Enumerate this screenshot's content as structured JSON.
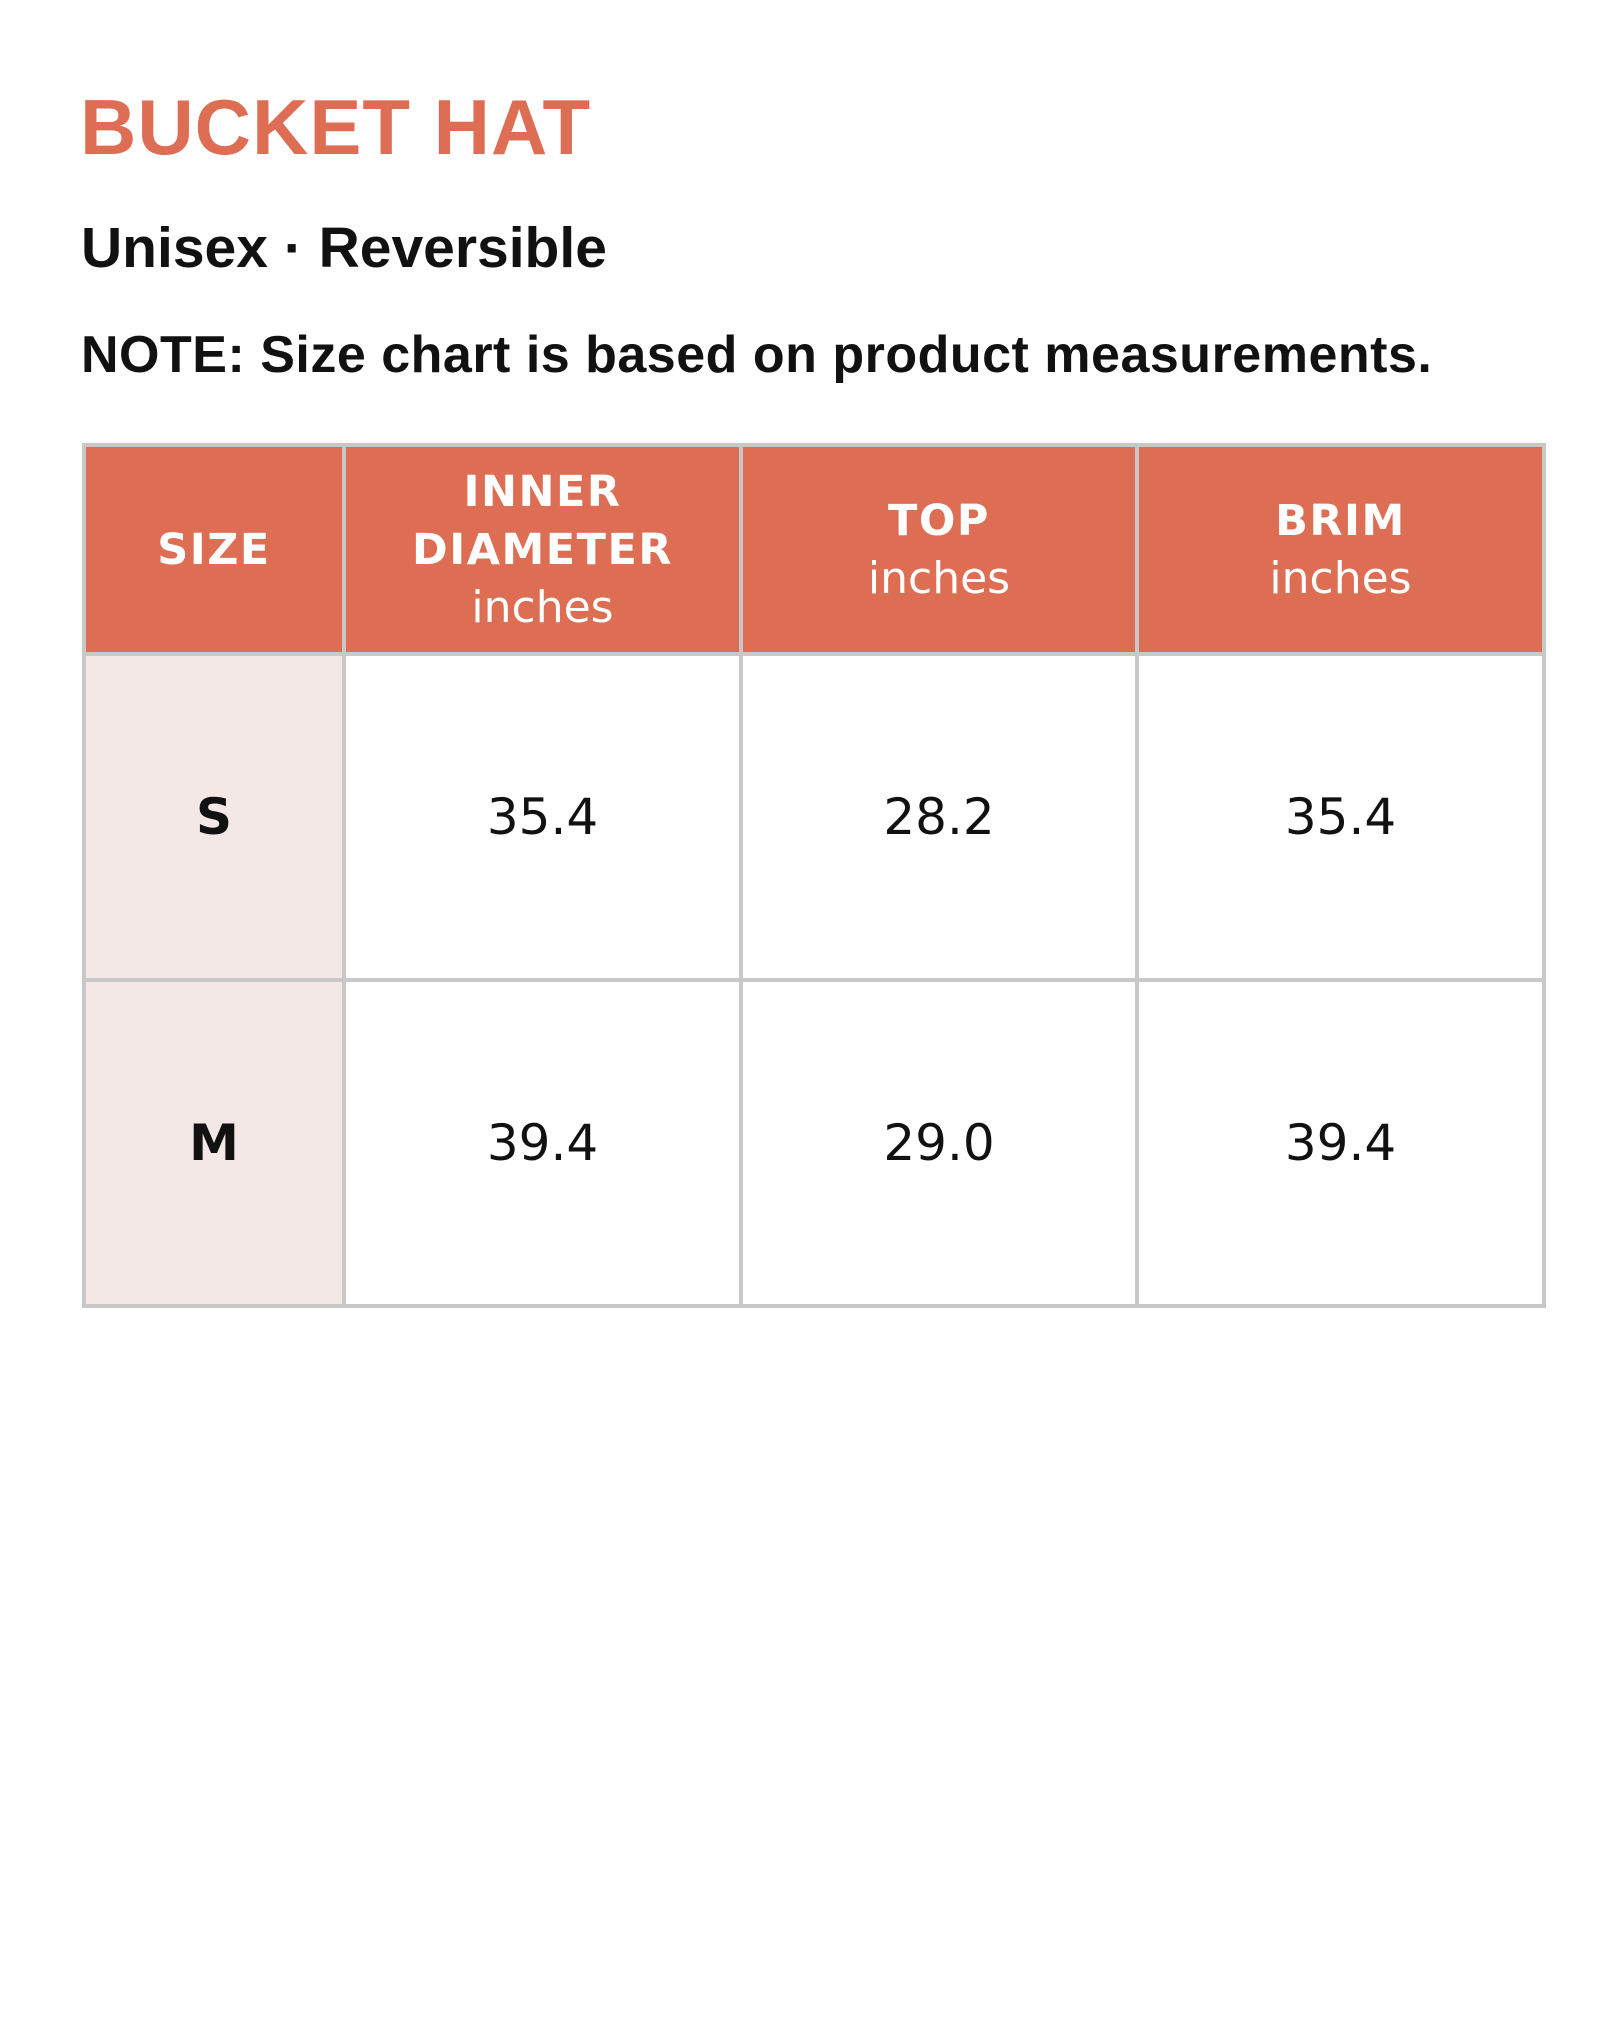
{
  "header": {
    "title": "BUCKET HAT",
    "subtitle": "Unisex · Reversible",
    "note": "NOTE: Size chart is based on product measurements."
  },
  "table": {
    "columns": [
      {
        "name": "SIZE"
      },
      {
        "name": "INNER DIAMETER",
        "unit": "inches"
      },
      {
        "name": "TOP",
        "unit": "inches"
      },
      {
        "name": "BRIM",
        "unit": "inches"
      }
    ],
    "rows": [
      [
        "S",
        "35.4",
        "28.2",
        "35.4"
      ],
      [
        "M",
        "39.4",
        "29.0",
        "39.4"
      ]
    ]
  }
}
